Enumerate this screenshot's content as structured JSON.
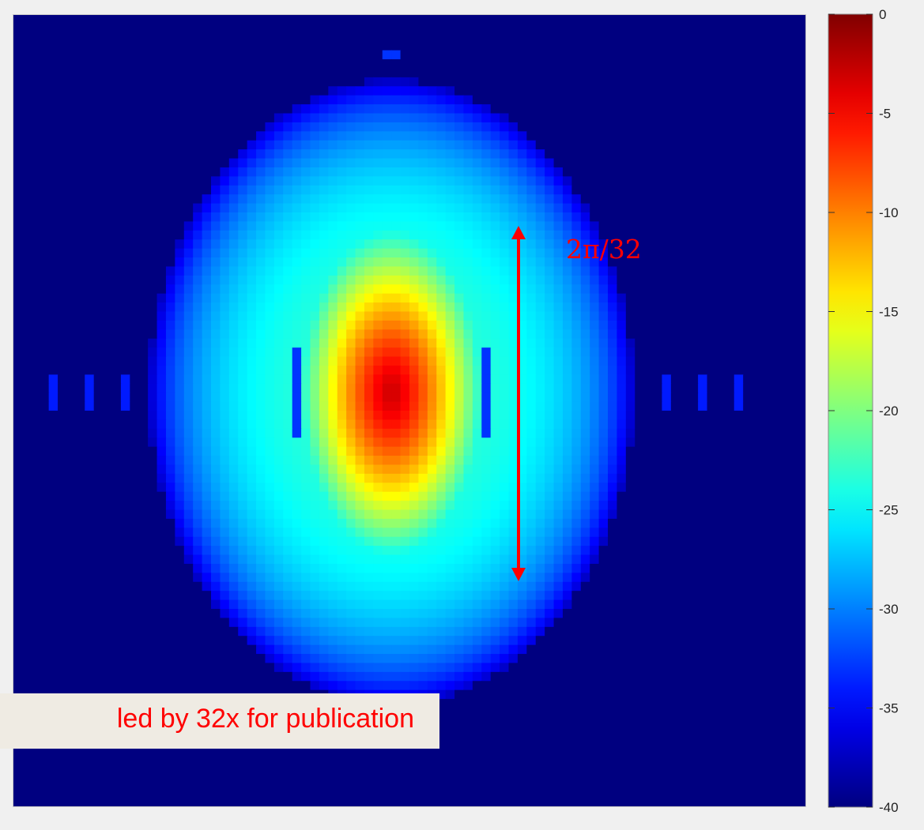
{
  "chart_data": {
    "type": "heatmap",
    "title": "",
    "xlabel": "",
    "ylabel": "",
    "grid": false,
    "colormap": "jet",
    "clim": [
      -40,
      0
    ],
    "colorbar": {
      "ticks": [
        0,
        -5,
        -10,
        -15,
        -20,
        -25,
        -30,
        -35,
        -40
      ],
      "tick_labels": [
        "0",
        "-5",
        "-10",
        "-15",
        "-20",
        "-25",
        "-30",
        "-35",
        "-40"
      ],
      "position": "right"
    },
    "resolution": [
      88,
      88
    ],
    "peak": {
      "value": 0,
      "location": "center"
    },
    "background_value": -40,
    "annotations": [
      {
        "text": "2π/32",
        "type": "double-arrow",
        "color": "#ff0000"
      },
      {
        "text": "led by 32x for publication",
        "type": "label-box",
        "color": "#ff0000"
      }
    ]
  },
  "annotation": {
    "arrow_label": "2π/32",
    "box_text": "led by 32x for publication"
  },
  "colors": {
    "arrow": "#ff0000",
    "annotation_box": "#efebe3",
    "figure_background": "#f0f0f0"
  }
}
